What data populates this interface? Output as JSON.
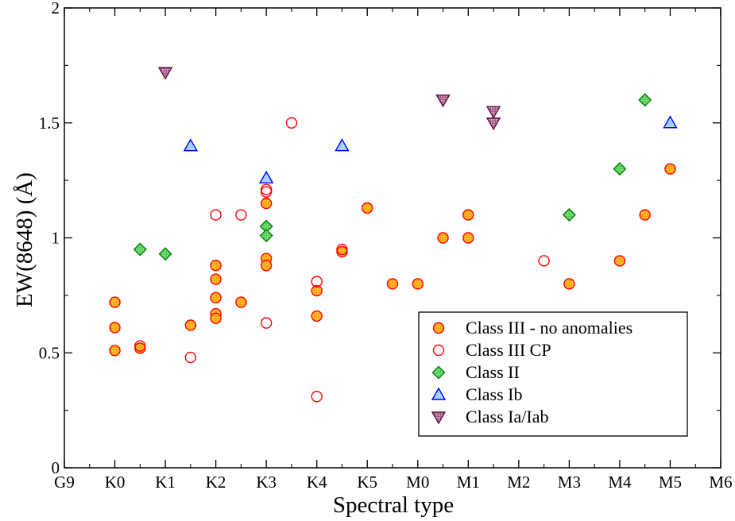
{
  "chart_data": {
    "type": "scatter",
    "title": "",
    "xlabel": "Spectral type",
    "ylabel": "EW(8648) (Å)",
    "xlim": [
      0,
      13
    ],
    "ylim": [
      0,
      2
    ],
    "x_ticks": [
      {
        "v": 0,
        "label": "G9"
      },
      {
        "v": 1,
        "label": "K0"
      },
      {
        "v": 2,
        "label": "K1"
      },
      {
        "v": 3,
        "label": "K2"
      },
      {
        "v": 4,
        "label": "K3"
      },
      {
        "v": 5,
        "label": "K4"
      },
      {
        "v": 6,
        "label": "K5"
      },
      {
        "v": 7,
        "label": "M0"
      },
      {
        "v": 8,
        "label": "M1"
      },
      {
        "v": 9,
        "label": "M2"
      },
      {
        "v": 10,
        "label": "M3"
      },
      {
        "v": 11,
        "label": "M4"
      },
      {
        "v": 12,
        "label": "M5"
      },
      {
        "v": 13,
        "label": "M6"
      }
    ],
    "y_ticks": [
      {
        "v": 0,
        "label": "0"
      },
      {
        "v": 0.5,
        "label": "0.5"
      },
      {
        "v": 1,
        "label": "1"
      },
      {
        "v": 1.5,
        "label": "1.5"
      },
      {
        "v": 2,
        "label": "2"
      }
    ],
    "legend_position": "bottom-right",
    "series": [
      {
        "name": "Class III - no anomalies",
        "marker": "circle-filled",
        "color": "#ff0000",
        "fill": "#ffa500",
        "points": [
          [
            1,
            0.72
          ],
          [
            1,
            0.61
          ],
          [
            1,
            0.51
          ],
          [
            1.5,
            0.52
          ],
          [
            2.5,
            0.62
          ],
          [
            3,
            0.88
          ],
          [
            3,
            0.82
          ],
          [
            3,
            0.74
          ],
          [
            3,
            0.67
          ],
          [
            3,
            0.65
          ],
          [
            3.5,
            0.72
          ],
          [
            4,
            1.15
          ],
          [
            4,
            0.91
          ],
          [
            4,
            0.88
          ],
          [
            5,
            0.77
          ],
          [
            5,
            0.66
          ],
          [
            5.5,
            0.94
          ],
          [
            6,
            1.13
          ],
          [
            6.5,
            0.8
          ],
          [
            7,
            0.8
          ],
          [
            7.5,
            1.0
          ],
          [
            8,
            1.1
          ],
          [
            8,
            1.0
          ],
          [
            10,
            0.8
          ],
          [
            11,
            0.9
          ],
          [
            11.5,
            1.1
          ],
          [
            12,
            1.3
          ]
        ]
      },
      {
        "name": "Class III CP",
        "marker": "circle-open",
        "color": "#ff0000",
        "fill": "none",
        "points": [
          [
            1.5,
            0.53
          ],
          [
            2.5,
            0.48
          ],
          [
            3,
            1.1
          ],
          [
            3.5,
            1.1
          ],
          [
            4,
            1.21
          ],
          [
            4,
            1.2
          ],
          [
            4,
            0.63
          ],
          [
            4.5,
            1.5
          ],
          [
            5,
            0.81
          ],
          [
            5,
            0.31
          ],
          [
            5.5,
            0.95
          ],
          [
            9.5,
            0.9
          ]
        ]
      },
      {
        "name": "Class II",
        "marker": "diamond",
        "color": "#008000",
        "fill": "#7ee87e",
        "points": [
          [
            1.5,
            0.95
          ],
          [
            2,
            0.93
          ],
          [
            4,
            1.05
          ],
          [
            4,
            1.01
          ],
          [
            10,
            1.1
          ],
          [
            11,
            1.3
          ],
          [
            11.5,
            1.6
          ]
        ]
      },
      {
        "name": "Class Ib",
        "marker": "triangle-up",
        "color": "#0000ff",
        "fill": "#9fd4ff",
        "points": [
          [
            2.5,
            1.4
          ],
          [
            4,
            1.26
          ],
          [
            5.5,
            1.4
          ],
          [
            12,
            1.5
          ]
        ]
      },
      {
        "name": "Class Ia/Iab",
        "marker": "triangle-down",
        "color": "#5a0a3c",
        "fill": "#c78fb0",
        "points": [
          [
            2,
            1.72
          ],
          [
            7.5,
            1.6
          ],
          [
            8.5,
            1.55
          ],
          [
            8.5,
            1.5
          ]
        ]
      }
    ]
  }
}
